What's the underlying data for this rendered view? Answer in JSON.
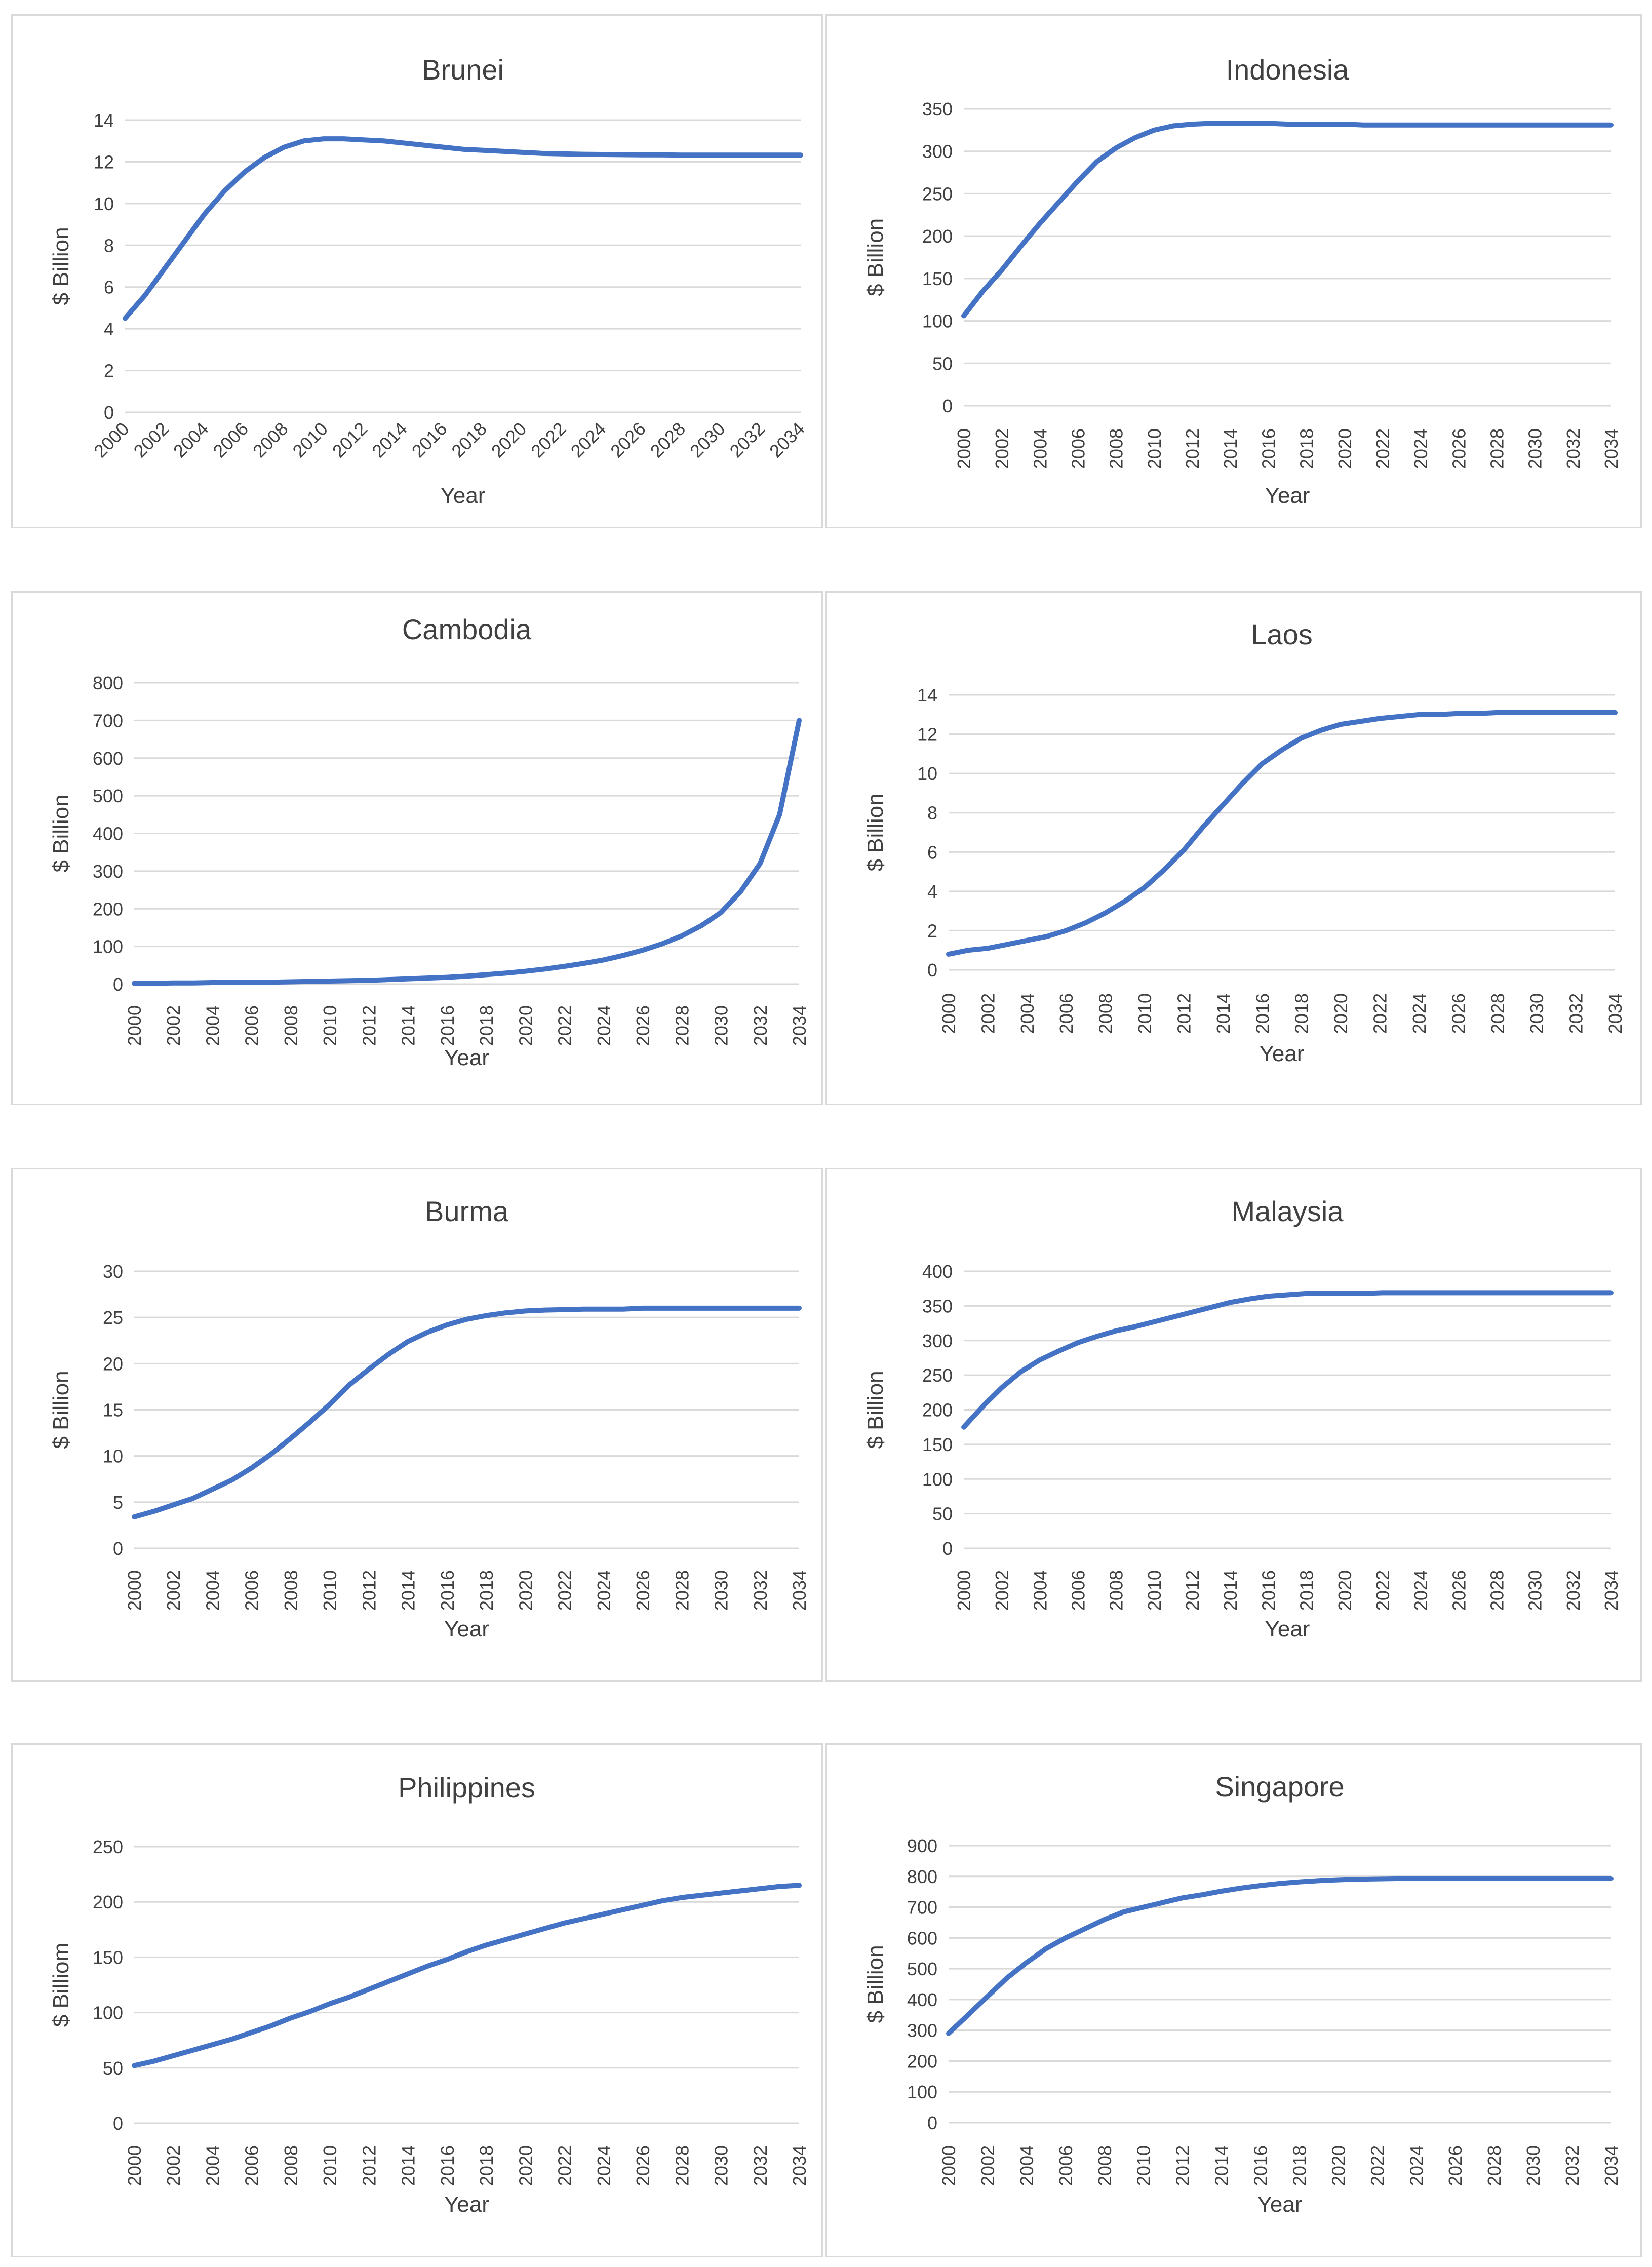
{
  "colors": {
    "series": "#4472c4",
    "grid": "#d9d9d9",
    "text": "#404040",
    "border": "#d9d9d9"
  },
  "chart_data": [
    {
      "type": "line",
      "title": "Brunei",
      "xlabel": "Year",
      "ylabel": "$ Billion",
      "ylim": [
        0,
        14
      ],
      "ystep": 2,
      "xlabel_rotation": -45,
      "x": [
        2000,
        2001,
        2002,
        2003,
        2004,
        2005,
        2006,
        2007,
        2008,
        2009,
        2010,
        2011,
        2012,
        2013,
        2014,
        2015,
        2016,
        2017,
        2018,
        2019,
        2020,
        2021,
        2022,
        2023,
        2024,
        2025,
        2026,
        2027,
        2028,
        2029,
        2030,
        2031,
        2032,
        2033,
        2034
      ],
      "x_ticks": [
        2000,
        2002,
        2004,
        2006,
        2008,
        2010,
        2012,
        2014,
        2016,
        2018,
        2020,
        2022,
        2024,
        2026,
        2028,
        2030,
        2032,
        2034
      ],
      "values": [
        4.5,
        5.6,
        6.9,
        8.2,
        9.5,
        10.6,
        11.5,
        12.2,
        12.7,
        13.0,
        13.1,
        13.1,
        13.05,
        13.0,
        12.9,
        12.8,
        12.7,
        12.6,
        12.55,
        12.5,
        12.45,
        12.4,
        12.38,
        12.36,
        12.35,
        12.34,
        12.33,
        12.33,
        12.32,
        12.32,
        12.32,
        12.32,
        12.32,
        12.32,
        12.32
      ]
    },
    {
      "type": "line",
      "title": "Indonesia",
      "xlabel": "Year",
      "ylabel": "$ Billion",
      "ylim": [
        0,
        350
      ],
      "ystep": 50,
      "xlabel_rotation": -90,
      "x": [
        2000,
        2001,
        2002,
        2003,
        2004,
        2005,
        2006,
        2007,
        2008,
        2009,
        2010,
        2011,
        2012,
        2013,
        2014,
        2015,
        2016,
        2017,
        2018,
        2019,
        2020,
        2021,
        2022,
        2023,
        2024,
        2025,
        2026,
        2027,
        2028,
        2029,
        2030,
        2031,
        2032,
        2033,
        2034
      ],
      "x_ticks": [
        2000,
        2002,
        2004,
        2006,
        2008,
        2010,
        2012,
        2014,
        2016,
        2018,
        2020,
        2022,
        2024,
        2026,
        2028,
        2030,
        2032,
        2034
      ],
      "values": [
        106,
        135,
        160,
        188,
        215,
        240,
        265,
        288,
        304,
        316,
        325,
        330,
        332,
        333,
        333,
        333,
        333,
        332,
        332,
        332,
        332,
        331,
        331,
        331,
        331,
        331,
        331,
        331,
        331,
        331,
        331,
        331,
        331,
        331,
        331
      ]
    },
    {
      "type": "line",
      "title": "Cambodia",
      "xlabel": "Year",
      "ylabel": "$ Billion",
      "ylim": [
        0,
        800
      ],
      "ystep": 100,
      "xlabel_rotation": -90,
      "x": [
        2000,
        2001,
        2002,
        2003,
        2004,
        2005,
        2006,
        2007,
        2008,
        2009,
        2010,
        2011,
        2012,
        2013,
        2014,
        2015,
        2016,
        2017,
        2018,
        2019,
        2020,
        2021,
        2022,
        2023,
        2024,
        2025,
        2026,
        2027,
        2028,
        2029,
        2030,
        2031,
        2032,
        2033,
        2034
      ],
      "x_ticks": [
        2000,
        2002,
        2004,
        2006,
        2008,
        2010,
        2012,
        2014,
        2016,
        2018,
        2020,
        2022,
        2024,
        2026,
        2028,
        2030,
        2032,
        2034
      ],
      "values": [
        2,
        2,
        3,
        3,
        4,
        4,
        5,
        5,
        6,
        7,
        8,
        9,
        10,
        12,
        14,
        16,
        18,
        21,
        25,
        29,
        34,
        40,
        47,
        55,
        64,
        76,
        90,
        107,
        128,
        155,
        190,
        245,
        320,
        450,
        700
      ]
    },
    {
      "type": "line",
      "title": "Laos",
      "xlabel": "Year",
      "ylabel": "$ Billion",
      "ylim": [
        0,
        14
      ],
      "ystep": 2,
      "xlabel_rotation": -90,
      "x": [
        2000,
        2001,
        2002,
        2003,
        2004,
        2005,
        2006,
        2007,
        2008,
        2009,
        2010,
        2011,
        2012,
        2013,
        2014,
        2015,
        2016,
        2017,
        2018,
        2019,
        2020,
        2021,
        2022,
        2023,
        2024,
        2025,
        2026,
        2027,
        2028,
        2029,
        2030,
        2031,
        2032,
        2033,
        2034
      ],
      "x_ticks": [
        2000,
        2002,
        2004,
        2006,
        2008,
        2010,
        2012,
        2014,
        2016,
        2018,
        2020,
        2022,
        2024,
        2026,
        2028,
        2030,
        2032,
        2034
      ],
      "values": [
        0.8,
        1.0,
        1.1,
        1.3,
        1.5,
        1.7,
        2.0,
        2.4,
        2.9,
        3.5,
        4.2,
        5.1,
        6.1,
        7.3,
        8.4,
        9.5,
        10.5,
        11.2,
        11.8,
        12.2,
        12.5,
        12.65,
        12.8,
        12.9,
        13.0,
        13.0,
        13.05,
        13.05,
        13.1,
        13.1,
        13.1,
        13.1,
        13.1,
        13.1,
        13.1
      ]
    },
    {
      "type": "line",
      "title": "Burma",
      "xlabel": "Year",
      "ylabel": "$ Billion",
      "ylim": [
        0,
        30
      ],
      "ystep": 5,
      "xlabel_rotation": -90,
      "x": [
        2000,
        2001,
        2002,
        2003,
        2004,
        2005,
        2006,
        2007,
        2008,
        2009,
        2010,
        2011,
        2012,
        2013,
        2014,
        2015,
        2016,
        2017,
        2018,
        2019,
        2020,
        2021,
        2022,
        2023,
        2024,
        2025,
        2026,
        2027,
        2028,
        2029,
        2030,
        2031,
        2032,
        2033,
        2034
      ],
      "x_ticks": [
        2000,
        2002,
        2004,
        2006,
        2008,
        2010,
        2012,
        2014,
        2016,
        2018,
        2020,
        2022,
        2024,
        2026,
        2028,
        2030,
        2032,
        2034
      ],
      "values": [
        3.4,
        4.0,
        4.7,
        5.4,
        6.4,
        7.4,
        8.7,
        10.2,
        11.9,
        13.7,
        15.6,
        17.7,
        19.4,
        21.0,
        22.4,
        23.4,
        24.2,
        24.8,
        25.2,
        25.5,
        25.7,
        25.8,
        25.85,
        25.9,
        25.9,
        25.9,
        26.0,
        26.0,
        26.0,
        26.0,
        26.0,
        26.0,
        26.0,
        26.0,
        26.0
      ]
    },
    {
      "type": "line",
      "title": "Malaysia",
      "xlabel": "Year",
      "ylabel": "$ Billion",
      "ylim": [
        0,
        400
      ],
      "ystep": 50,
      "xlabel_rotation": -90,
      "x": [
        2000,
        2001,
        2002,
        2003,
        2004,
        2005,
        2006,
        2007,
        2008,
        2009,
        2010,
        2011,
        2012,
        2013,
        2014,
        2015,
        2016,
        2017,
        2018,
        2019,
        2020,
        2021,
        2022,
        2023,
        2024,
        2025,
        2026,
        2027,
        2028,
        2029,
        2030,
        2031,
        2032,
        2033,
        2034
      ],
      "x_ticks": [
        2000,
        2002,
        2004,
        2006,
        2008,
        2010,
        2012,
        2014,
        2016,
        2018,
        2020,
        2022,
        2024,
        2026,
        2028,
        2030,
        2032,
        2034
      ],
      "values": [
        175,
        205,
        232,
        255,
        272,
        285,
        297,
        306,
        314,
        320,
        327,
        334,
        341,
        348,
        355,
        360,
        364,
        366,
        368,
        368,
        368,
        368,
        369,
        369,
        369,
        369,
        369,
        369,
        369,
        369,
        369,
        369,
        369,
        369,
        369
      ]
    },
    {
      "type": "line",
      "title": "Philippines",
      "xlabel": "Year",
      "ylabel": "$ Billiom",
      "ylim": [
        0,
        250
      ],
      "ystep": 50,
      "xlabel_rotation": -90,
      "x": [
        2000,
        2001,
        2002,
        2003,
        2004,
        2005,
        2006,
        2007,
        2008,
        2009,
        2010,
        2011,
        2012,
        2013,
        2014,
        2015,
        2016,
        2017,
        2018,
        2019,
        2020,
        2021,
        2022,
        2023,
        2024,
        2025,
        2026,
        2027,
        2028,
        2029,
        2030,
        2031,
        2032,
        2033,
        2034
      ],
      "x_ticks": [
        2000,
        2002,
        2004,
        2006,
        2008,
        2010,
        2012,
        2014,
        2016,
        2018,
        2020,
        2022,
        2024,
        2026,
        2028,
        2030,
        2032,
        2034
      ],
      "values": [
        52,
        56,
        61,
        66,
        71,
        76,
        82,
        88,
        95,
        101,
        108,
        114,
        121,
        128,
        135,
        142,
        148,
        155,
        161,
        166,
        171,
        176,
        181,
        185,
        189,
        193,
        197,
        201,
        204,
        206,
        208,
        210,
        212,
        214,
        215
      ]
    },
    {
      "type": "line",
      "title": "Singapore",
      "xlabel": "Year",
      "ylabel": "$ Billion",
      "ylim": [
        0,
        900
      ],
      "ystep": 100,
      "xlabel_rotation": -90,
      "x": [
        2000,
        2001,
        2002,
        2003,
        2004,
        2005,
        2006,
        2007,
        2008,
        2009,
        2010,
        2011,
        2012,
        2013,
        2014,
        2015,
        2016,
        2017,
        2018,
        2019,
        2020,
        2021,
        2022,
        2023,
        2024,
        2025,
        2026,
        2027,
        2028,
        2029,
        2030,
        2031,
        2032,
        2033,
        2034
      ],
      "x_ticks": [
        2000,
        2002,
        2004,
        2006,
        2008,
        2010,
        2012,
        2014,
        2016,
        2018,
        2020,
        2022,
        2024,
        2026,
        2028,
        2030,
        2032,
        2034
      ],
      "values": [
        290,
        350,
        410,
        470,
        520,
        565,
        600,
        630,
        660,
        685,
        700,
        715,
        730,
        740,
        752,
        762,
        770,
        777,
        782,
        786,
        789,
        791,
        792,
        793,
        793,
        793,
        793,
        793,
        793,
        793,
        793,
        793,
        793,
        793,
        793
      ]
    }
  ]
}
